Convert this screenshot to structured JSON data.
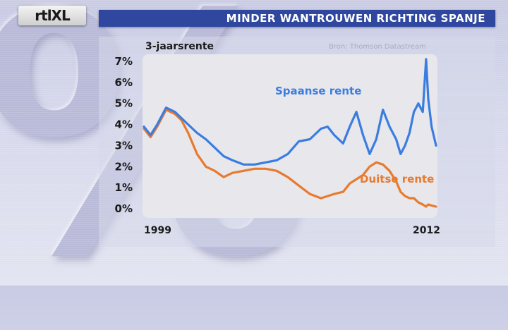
{
  "broadcast": {
    "logo_text": "rtlXL",
    "headline": "MINDER WANTROUWEN RICHTING SPANJE"
  },
  "colors": {
    "title_bar": "#2f479f",
    "plot_background": "#e7e7ec",
    "spanish_series": "#3a7de0",
    "german_series": "#e87a2e"
  },
  "chart_data": {
    "type": "line",
    "title": "3-jaarsrente",
    "source": "Bron: Thomson Datastream",
    "y_ticks": [
      "7%",
      "6%",
      "5%",
      "4%",
      "3%",
      "2%",
      "1%",
      "0%"
    ],
    "x_labels": [
      "1999",
      "2012"
    ],
    "ylim": [
      0,
      7.4
    ],
    "xlim": [
      1999.0,
      2012.2
    ],
    "grid": false,
    "series": [
      {
        "name": "Spaanse rente",
        "color": "#3a7de0",
        "x": [
          1999.0,
          1999.3,
          1999.6,
          2000.0,
          2000.4,
          2000.7,
          2001.0,
          2001.4,
          2001.8,
          2002.2,
          2002.6,
          2003.0,
          2003.5,
          2004.0,
          2004.5,
          2005.0,
          2005.5,
          2006.0,
          2006.5,
          2007.0,
          2007.3,
          2007.6,
          2008.0,
          2008.3,
          2008.6,
          2008.9,
          2009.2,
          2009.5,
          2009.8,
          2010.1,
          2010.4,
          2010.6,
          2010.8,
          2011.0,
          2011.2,
          2011.4,
          2011.6,
          2011.75,
          2011.85,
          2012.0,
          2012.2
        ],
        "values": [
          3.9,
          3.5,
          4.0,
          4.8,
          4.6,
          4.3,
          4.0,
          3.6,
          3.3,
          2.9,
          2.5,
          2.3,
          2.1,
          2.1,
          2.2,
          2.3,
          2.6,
          3.2,
          3.3,
          3.8,
          3.9,
          3.5,
          3.1,
          3.9,
          4.6,
          3.5,
          2.6,
          3.3,
          4.7,
          3.9,
          3.3,
          2.6,
          3.0,
          3.6,
          4.6,
          5.0,
          4.6,
          7.1,
          5.2,
          3.9,
          3.0
        ]
      },
      {
        "name": "Duitse rente",
        "color": "#e87a2e",
        "x": [
          1999.0,
          1999.3,
          1999.6,
          2000.0,
          2000.4,
          2000.7,
          2001.0,
          2001.4,
          2001.8,
          2002.2,
          2002.6,
          2003.0,
          2003.5,
          2004.0,
          2004.5,
          2005.0,
          2005.5,
          2006.0,
          2006.5,
          2007.0,
          2007.3,
          2007.6,
          2008.0,
          2008.3,
          2008.6,
          2008.9,
          2009.2,
          2009.5,
          2009.8,
          2010.1,
          2010.4,
          2010.6,
          2010.8,
          2011.0,
          2011.2,
          2011.4,
          2011.6,
          2011.75,
          2011.85,
          2012.0,
          2012.2
        ],
        "values": [
          3.8,
          3.4,
          3.9,
          4.7,
          4.5,
          4.2,
          3.6,
          2.6,
          2.0,
          1.8,
          1.5,
          1.7,
          1.8,
          1.9,
          1.9,
          1.8,
          1.5,
          1.1,
          0.7,
          0.5,
          0.6,
          0.7,
          0.8,
          1.2,
          1.4,
          1.6,
          2.0,
          2.2,
          2.1,
          1.8,
          1.3,
          0.8,
          0.6,
          0.5,
          0.5,
          0.3,
          0.2,
          0.1,
          0.2,
          0.15,
          0.1
        ]
      }
    ]
  }
}
